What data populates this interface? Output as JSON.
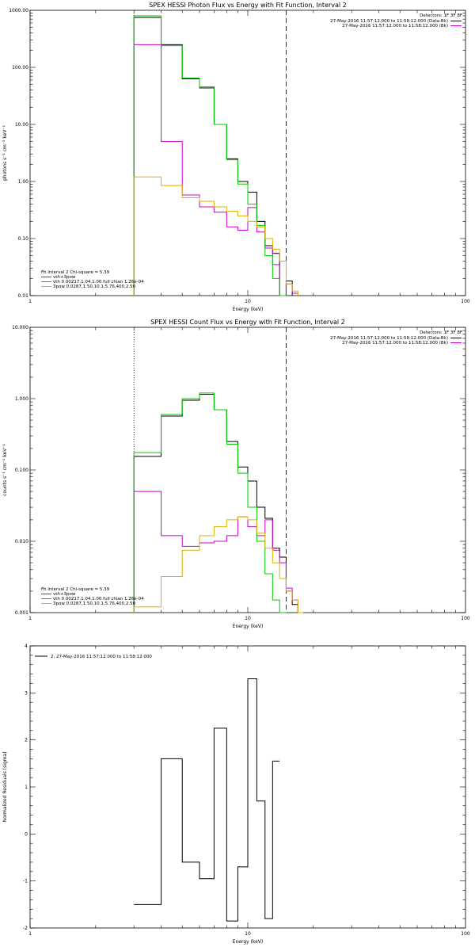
{
  "colors": {
    "black": "#000000",
    "magenta": "#cc00cc",
    "green": "#00cc00",
    "yellow": "#e0b000"
  },
  "chart_data": [
    {
      "type": "line",
      "title": "SPEX HESSI Photon Flux vs Energy with Fit Function, Interval 2",
      "xlabel": "Energy (keV)",
      "ylabel": "photons s⁻¹ cm⁻² keV⁻¹",
      "xscale": "log",
      "yscale": "log",
      "xlim": [
        1,
        100
      ],
      "ylim": [
        0.01,
        1000
      ],
      "x_ticks": [
        "1",
        "10",
        "100"
      ],
      "y_ticks": [
        "0.01",
        "0.10",
        "1.00",
        "10.00",
        "100.00",
        "1000.00"
      ],
      "detectors_label": "Detectors: 1F 3F 8F",
      "legend_lines": [
        "27-May-2016 11:57:12.000 to 11:58:12.000 (Data-Bk)",
        "27-May-2016 11:57:12.000 to 11:58:12.000 (Bk)"
      ],
      "fit_info": [
        "Fit Interval 2   Chi-square = 5.39",
        "vth+3pow",
        "vth 0.00217,1.04,1.00  full chian 1.26e-04",
        "3pow 0.0287,1.50,10.1,5.76,400,2.50"
      ],
      "vertical_lines": [
        {
          "x": 3.0,
          "style": "dotted"
        },
        {
          "x": 15.0,
          "style": "dashed"
        }
      ],
      "bin_edges": [
        3.0,
        4.0,
        5.0,
        6.0,
        7.0,
        8.0,
        9.0,
        10.0,
        11.0,
        12.0,
        13.0,
        14.0,
        15.0,
        16.0,
        17.0,
        18.0
      ],
      "series": [
        {
          "name": "Data-Bk",
          "color": "#000000",
          "values": [
            750,
            250,
            63,
            45,
            10,
            2.5,
            1.0,
            0.65,
            0.2,
            0.075,
            0.055,
            null,
            0.018,
            null,
            null
          ]
        },
        {
          "name": "Bk",
          "color": "#cc00cc",
          "values": [
            250,
            5.0,
            0.58,
            0.36,
            0.29,
            0.16,
            0.14,
            0.35,
            0.13,
            0.068,
            0.035,
            null,
            0.016,
            0.011,
            null
          ]
        },
        {
          "name": "vth",
          "color": "#00cc00",
          "values": [
            800,
            240,
            65,
            43,
            10,
            2.4,
            0.9,
            0.4,
            0.17,
            0.05,
            0.02,
            0.01,
            null,
            null,
            null
          ]
        },
        {
          "name": "3pow",
          "color": "#e0b000",
          "values": [
            1.2,
            0.85,
            0.52,
            0.45,
            0.36,
            0.3,
            0.25,
            0.2,
            0.16,
            0.1,
            0.065,
            0.04,
            0.016,
            0.012,
            null
          ]
        }
      ]
    },
    {
      "type": "line",
      "title": "SPEX HESSI Count Flux vs Energy with Fit Function, Interval 2",
      "xlabel": "Energy (keV)",
      "ylabel": "counts s⁻¹ cm⁻² keV⁻¹",
      "xscale": "log",
      "yscale": "log",
      "xlim": [
        1,
        100
      ],
      "ylim": [
        0.001,
        10
      ],
      "x_ticks": [
        "1",
        "10",
        "100"
      ],
      "y_ticks": [
        "0.001",
        "0.010",
        "0.100",
        "1.000",
        "10.000"
      ],
      "detectors_label": "Detectors: 1F 3F 8F",
      "legend_lines": [
        "27-May-2016 11:57:12.000 to 11:58:12.000 (Data-Bk)",
        "27-May-2016 11:57:12.000 to 11:58:12.000 (Bk)"
      ],
      "fit_info": [
        "Fit Interval 2   Chi-square = 5.39",
        "vth+3pow",
        "vth 0.00217,1.04,1.00  full chian 1.26e-04",
        "3pow 0.0287,1.50,10.1,5.76,400,2.50"
      ],
      "vertical_lines": [
        {
          "x": 3.0,
          "style": "dotted"
        },
        {
          "x": 15.0,
          "style": "dashed"
        }
      ],
      "bin_edges": [
        3.0,
        4.0,
        5.0,
        6.0,
        7.0,
        8.0,
        9.0,
        10.0,
        11.0,
        12.0,
        13.0,
        14.0,
        15.0,
        16.0,
        17.0,
        18.0
      ],
      "series": [
        {
          "name": "Data-Bk",
          "color": "#000000",
          "values": [
            0.155,
            0.57,
            0.95,
            1.15,
            0.7,
            0.25,
            0.11,
            0.07,
            0.03,
            0.021,
            0.008,
            0.006,
            0.002,
            0.0013,
            null
          ]
        },
        {
          "name": "Bk",
          "color": "#cc00cc",
          "values": [
            0.05,
            0.012,
            0.0085,
            0.0095,
            0.01,
            0.012,
            0.022,
            0.016,
            0.012,
            0.02,
            0.0075,
            0.005,
            0.0022,
            0.0015,
            null
          ]
        },
        {
          "name": "vth",
          "color": "#00cc00",
          "values": [
            0.175,
            0.6,
            1.0,
            1.2,
            0.7,
            0.23,
            0.09,
            0.03,
            0.01,
            0.0035,
            0.0015,
            0.001,
            null,
            null,
            null
          ]
        },
        {
          "name": "3pow",
          "color": "#e0b000",
          "values": [
            0.0012,
            0.0032,
            0.0075,
            0.012,
            0.016,
            0.02,
            0.022,
            0.02,
            0.013,
            0.008,
            0.005,
            0.003,
            0.002,
            0.0015,
            0.001
          ]
        }
      ]
    },
    {
      "type": "line",
      "title": "",
      "xlabel": "Energy (keV)",
      "ylabel": "Normalized Residuals (sigma)",
      "xscale": "log",
      "xlim": [
        1,
        100
      ],
      "ylim": [
        -2,
        4
      ],
      "x_ticks": [
        "1",
        "10",
        "100"
      ],
      "y_ticks": [
        "-2",
        "-1",
        "0",
        "1",
        "2",
        "3",
        "4"
      ],
      "legend": "2, 27-May-2016 11:57:12.000 to 11:58:12.000",
      "bin_edges": [
        3.0,
        4.0,
        5.0,
        6.0,
        7.0,
        8.0,
        9.0,
        10.0,
        11.0,
        12.0,
        13.0,
        14.0
      ],
      "series": [
        {
          "name": "",
          "color": "#000000",
          "values": [
            -1.5,
            1.6,
            -0.6,
            -0.95,
            2.25,
            -1.85,
            -0.7,
            3.3,
            0.7,
            -1.8,
            1.55
          ]
        }
      ]
    }
  ]
}
